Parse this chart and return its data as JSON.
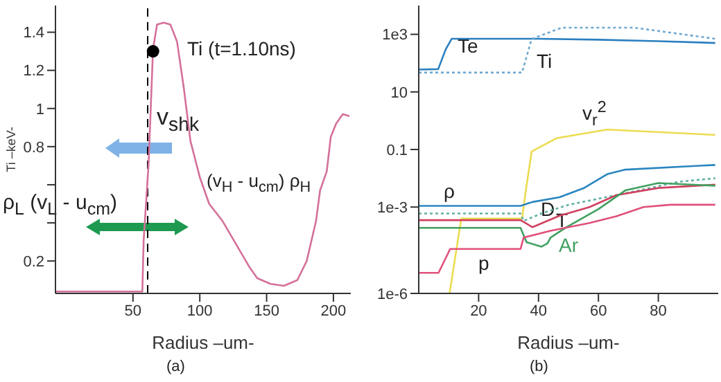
{
  "chart_data": [
    {
      "type": "line",
      "xlabel": "Radius –um-",
      "ylabel": "Ti –keV-",
      "xlim": [
        -8,
        213
      ],
      "xticks": [
        50,
        100,
        150,
        200
      ],
      "ylim": [
        0.03,
        1.54
      ],
      "yticks": [
        0.2,
        {
          "value": 0.4,
          "label": null
        },
        {
          "value": 0.6,
          "label": null
        },
        0.8,
        1.0,
        1.2,
        1.4
      ],
      "marker": "none",
      "ref_lines": [
        {
          "axis": "x",
          "value": 61,
          "color": "#000000",
          "line_style": "dashed"
        }
      ],
      "annotations": [
        "Ti (t=1.10ns)",
        "v$_{shk}$",
        "ρ$_{L}$ (v$_{L}$ - u$_{cm}$)",
        "(v$_{H}$ - u$_{cm}$) ρ$_{H}$",
        "(a)"
      ],
      "series": [
        {
          "color": "#d4709a",
          "x": [
            -8,
            57,
            58,
            61.7,
            65,
            68,
            73,
            78,
            83,
            88,
            93,
            100,
            107,
            117,
            127,
            137,
            143,
            153,
            163,
            173,
            180,
            187,
            190,
            195,
            198,
            202,
            207,
            212
          ],
          "values": [
            0.04,
            0.04,
            0.31,
            0.71,
            1.31,
            1.44,
            1.45,
            1.44,
            1.35,
            1.11,
            0.83,
            0.64,
            0.5,
            0.41,
            0.29,
            0.17,
            0.11,
            0.08,
            0.07,
            0.1,
            0.2,
            0.41,
            0.57,
            0.67,
            0.85,
            0.92,
            0.97,
            0.96
          ]
        },
        {
          "type": "scatter",
          "marker": "circle",
          "color": "#000000",
          "x": [
            65
          ],
          "values": [
            1.3
          ]
        }
      ]
    },
    {
      "type": "line",
      "xlabel": "Radius –um-",
      "log": "y",
      "xlim": [
        0,
        100
      ],
      "xticks": [
        20,
        40,
        60,
        80
      ],
      "ylim": [
        1e-06,
        10000.0
      ],
      "yticks": [
        {
          "value": 1e-06,
          "label": "1e-6"
        },
        {
          "value": 0.001,
          "label": "1e-3"
        },
        0.1,
        10,
        {
          "value": 1000,
          "label": "1e3"
        }
      ],
      "marker": "none",
      "annotations": [
        "(b)"
      ],
      "series": [
        {
          "name": "Te",
          "color": "#2a7fc0",
          "x": [
            0,
            6.5,
            9,
            11,
            40,
            60,
            80,
            99
          ],
          "values": [
            60,
            62,
            300,
            700,
            700,
            650,
            580,
            500
          ]
        },
        {
          "name": "Ti",
          "color": "#6fa8d0",
          "line_style": "dotted",
          "x": [
            0,
            34.5,
            37.7,
            47.7,
            72,
            99
          ],
          "values": [
            47,
            47,
            690,
            1700,
            1700,
            700
          ]
        },
        {
          "name": "v$_{r}$$^{2}$",
          "color": "#ecdc50",
          "x": [
            10.3,
            14.2,
            34.5,
            35.7,
            37.7,
            46.2,
            63,
            99
          ],
          "values": [
            1e-06,
            0.0004,
            0.0004,
            0.0034,
            0.085,
            0.25,
            0.49,
            0.32
          ]
        },
        {
          "name": "ρ",
          "color": "#2a86c0",
          "x": [
            0,
            34,
            38,
            47,
            55,
            63,
            69,
            99
          ],
          "values": [
            0.0011,
            0.0011,
            0.0015,
            0.0022,
            0.0045,
            0.014,
            0.02,
            0.029
          ]
        },
        {
          "name": "D",
          "color": "#60b0a0",
          "line_style": "dotted",
          "x": [
            0,
            34,
            35,
            41,
            50,
            66,
            87,
            99
          ],
          "values": [
            0.0006,
            0.0006,
            0.00033,
            0.0006,
            0.0012,
            0.0026,
            0.0076,
            0.01
          ]
        },
        {
          "name": "T",
          "color": "#d04060",
          "x": [
            0,
            34,
            38,
            47,
            57,
            66,
            80,
            99
          ],
          "values": [
            0.00035,
            0.00035,
            0.0002,
            0.0005,
            0.001,
            0.0026,
            0.0046,
            0.006
          ]
        },
        {
          "name": "Ar",
          "color": "#40a060",
          "x": [
            0,
            34,
            36,
            41,
            43,
            44,
            49,
            60,
            69,
            80,
            99
          ],
          "values": [
            0.00019,
            0.00019,
            6e-05,
            4.2e-05,
            5.5e-05,
            8.7e-05,
            0.00019,
            0.00085,
            0.0038,
            0.0068,
            0.0055
          ]
        },
        {
          "name": "p",
          "color": "#e0507a",
          "x": [
            0,
            6.6,
            10.5,
            34,
            35,
            44,
            57,
            66,
            75,
            84,
            99
          ],
          "values": [
            5.2e-06,
            5.2e-06,
            3.5e-05,
            3.5e-05,
            8.7e-05,
            0.00015,
            0.00028,
            0.00048,
            0.001,
            0.0012,
            0.0012
          ]
        }
      ]
    }
  ]
}
